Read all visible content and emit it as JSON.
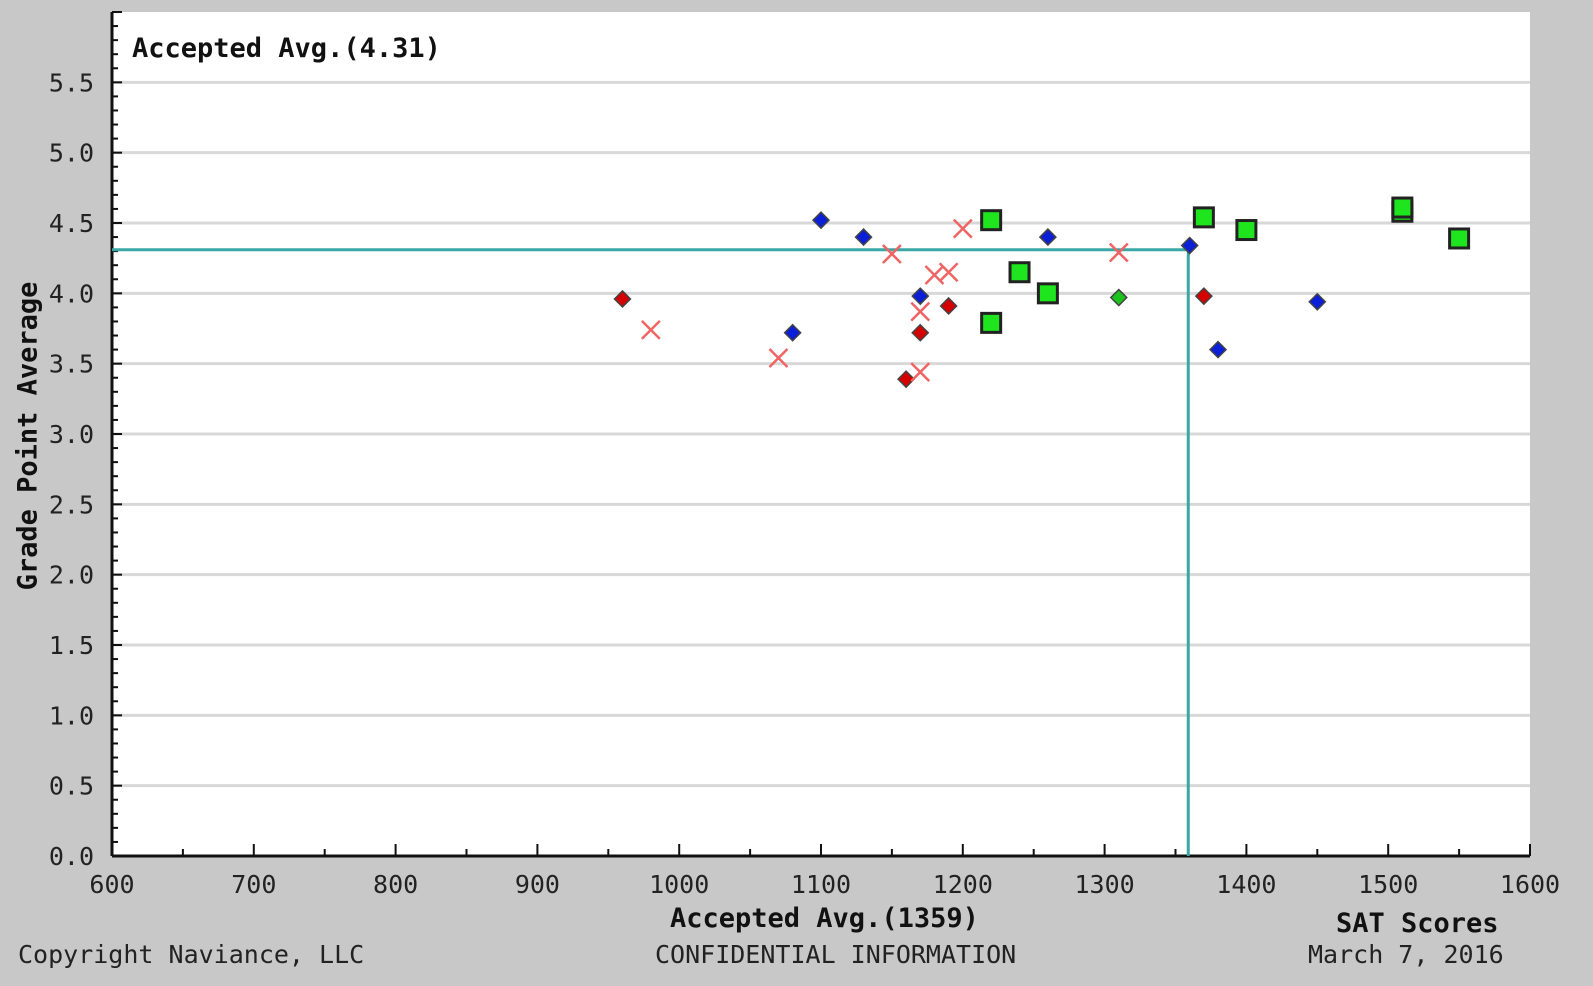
{
  "chart_data": {
    "type": "scatter",
    "xlim": [
      600,
      1600
    ],
    "ylim": [
      0,
      6
    ],
    "x_ticks": [
      "600",
      "700",
      "800",
      "900",
      "1000",
      "1100",
      "1200",
      "1300",
      "1400",
      "1500",
      "1600"
    ],
    "y_ticks": [
      "0.0",
      "0.5",
      "1.0",
      "1.5",
      "2.0",
      "2.5",
      "3.0",
      "3.5",
      "4.0",
      "4.5",
      "5.0",
      "5.5"
    ],
    "ylabel": "Grade Point Average",
    "xlabel": "Accepted Avg.(1359)",
    "x_title": "SAT Scores",
    "top_label": "Accepted Avg.(4.31)",
    "avg_x": 1359,
    "avg_y": 4.31,
    "grid": true,
    "colors": {
      "background": "#c8c8c8",
      "plot": "#ffffff",
      "grid": "#d8d8d8",
      "avg_line": "#3aa6a6",
      "blue": "#0a1fd6",
      "red": "#d40000",
      "green": "#1cc31c",
      "cross": "#f06464",
      "square_fill": "#1ee51e"
    },
    "series": [
      {
        "marker": "diamond-blue",
        "points": [
          [
            1100,
            4.52
          ],
          [
            1130,
            4.4
          ],
          [
            1170,
            3.98
          ],
          [
            1080,
            3.72
          ],
          [
            1260,
            4.4
          ],
          [
            1360,
            4.34
          ],
          [
            1380,
            3.6
          ],
          [
            1450,
            3.94
          ]
        ]
      },
      {
        "marker": "diamond-red",
        "points": [
          [
            960,
            3.96
          ],
          [
            1160,
            3.39
          ],
          [
            1170,
            3.72
          ],
          [
            1190,
            3.91
          ],
          [
            1370,
            3.98
          ]
        ]
      },
      {
        "marker": "diamond-green",
        "points": [
          [
            1310,
            3.97
          ]
        ]
      },
      {
        "marker": "x-red",
        "points": [
          [
            980,
            3.74
          ],
          [
            1070,
            3.54
          ],
          [
            1150,
            4.28
          ],
          [
            1170,
            3.44
          ],
          [
            1170,
            3.87
          ],
          [
            1180,
            4.13
          ],
          [
            1190,
            4.15
          ],
          [
            1200,
            4.46
          ],
          [
            1310,
            4.29
          ]
        ]
      },
      {
        "marker": "square-green",
        "points": [
          [
            1220,
            4.52
          ],
          [
            1220,
            3.79
          ],
          [
            1240,
            4.15
          ],
          [
            1260,
            4.0
          ],
          [
            1370,
            4.54
          ],
          [
            1400,
            4.45
          ],
          [
            1510,
            4.58
          ],
          [
            1510,
            4.61
          ],
          [
            1550,
            4.39
          ]
        ]
      }
    ]
  },
  "footer": {
    "copyright": "Copyright Naviance, LLC",
    "confidential": "CONFIDENTIAL INFORMATION",
    "date": "March 7, 2016"
  }
}
